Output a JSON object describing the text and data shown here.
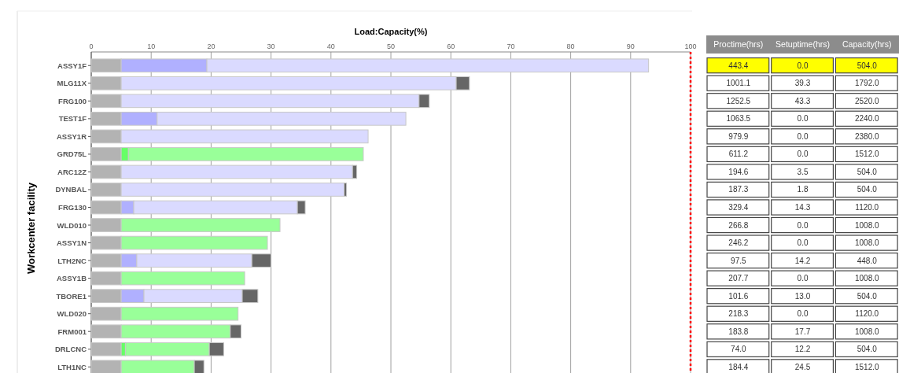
{
  "chart_data": [
    {
      "type": "bar",
      "orientation": "horizontal",
      "stacked": true,
      "title": "Load:Capacity(%)",
      "ylabel": "Workcenter facility",
      "categories": [
        "ASSY1F",
        "MLG11X",
        "FRG100",
        "TEST1F",
        "ASSY1R",
        "GRD75L",
        "ARC12Z",
        "DYNBAL",
        "FRG130",
        "WLD010",
        "ASSY1N",
        "LTH2NC",
        "ASSY1B",
        "TBORE1",
        "WLD020",
        "FRM001",
        "DRLCNC",
        "LTH1NC"
      ],
      "series": [
        {
          "color": "#b3b3b3",
          "values": [
            5,
            5,
            5,
            5,
            5,
            5,
            5,
            5,
            5,
            5,
            5,
            5,
            5,
            5,
            5,
            5,
            5,
            5
          ]
        },
        {
          "colors": [
            "#b0b0ff",
            "#b0b0ff",
            "#b0b0ff",
            "#b0b0ff",
            "#b0b0ff",
            "#66ff66",
            "#b0b0ff",
            "#b0b0ff",
            "#b0b0ff",
            "#66ff66",
            "#66ff66",
            "#b0b0ff",
            "#66ff66",
            "#b0b0ff",
            "#66ff66",
            "#66ff66",
            "#66ff66",
            "#66ff66"
          ],
          "values": [
            14.3,
            0,
            0,
            6.0,
            0,
            1.2,
            0,
            0,
            2.1,
            0,
            0,
            2.6,
            0,
            3.8,
            0,
            0,
            0.7,
            0
          ]
        },
        {
          "colors": [
            "#dadaff",
            "#dadaff",
            "#dadaff",
            "#dadaff",
            "#dadaff",
            "#99ff99",
            "#dadaff",
            "#dadaff",
            "#dadaff",
            "#99ff99",
            "#99ff99",
            "#dadaff",
            "#99ff99",
            "#dadaff",
            "#99ff99",
            "#99ff99",
            "#99ff99",
            "#99ff99"
          ],
          "values": [
            73.7,
            55.9,
            49.7,
            41.5,
            41.2,
            39.2,
            38.6,
            37.2,
            27.3,
            26.5,
            24.4,
            19.2,
            20.6,
            16.4,
            19.5,
            18.2,
            14.0,
            12.2
          ]
        },
        {
          "color": "#666666",
          "values": [
            0,
            2.2,
            1.7,
            0,
            0,
            0,
            0.7,
            0.4,
            1.3,
            0,
            0,
            3.2,
            0,
            2.6,
            0,
            1.8,
            2.4,
            1.6
          ]
        }
      ],
      "xlim": [
        0,
        100
      ],
      "xticks": [
        0,
        10,
        20,
        30,
        40,
        50,
        60,
        70,
        80,
        90,
        100
      ],
      "grid": "x",
      "ref_lines": [
        {
          "axis": "x",
          "value": 100,
          "color": "#ff0000",
          "line_style": "dotted"
        }
      ]
    },
    {
      "type": "other",
      "categories": [
        "Proctime(hrs)",
        "Setuptime(hrs)",
        "Capacity(hrs)"
      ],
      "colors": [
        [
          "#ffff00",
          "#ffff00",
          "#ffff00"
        ],
        [
          "#ffffff",
          "#ffffff",
          "#ffffff"
        ],
        [
          "#ffffff",
          "#ffffff",
          "#ffffff"
        ],
        [
          "#ffffff",
          "#ffffff",
          "#ffffff"
        ],
        [
          "#ffffff",
          "#ffffff",
          "#ffffff"
        ],
        [
          "#ffffff",
          "#ffffff",
          "#ffffff"
        ],
        [
          "#ffffff",
          "#ffffff",
          "#ffffff"
        ],
        [
          "#ffffff",
          "#ffffff",
          "#ffffff"
        ],
        [
          "#ffffff",
          "#ffffff",
          "#ffffff"
        ],
        [
          "#ffffff",
          "#ffffff",
          "#ffffff"
        ],
        [
          "#ffffff",
          "#ffffff",
          "#ffffff"
        ],
        [
          "#ffffff",
          "#ffffff",
          "#ffffff"
        ],
        [
          "#ffffff",
          "#ffffff",
          "#ffffff"
        ],
        [
          "#ffffff",
          "#ffffff",
          "#ffffff"
        ],
        [
          "#ffffff",
          "#ffffff",
          "#ffffff"
        ],
        [
          "#ffffff",
          "#ffffff",
          "#ffffff"
        ],
        [
          "#ffffff",
          "#ffffff",
          "#ffffff"
        ],
        [
          "#ffffff",
          "#ffffff",
          "#ffffff"
        ]
      ],
      "cell_labels": [
        [
          "443.4",
          "0.0",
          "504.0"
        ],
        [
          "1001.1",
          "39.3",
          "1792.0"
        ],
        [
          "1252.5",
          "43.3",
          "2520.0"
        ],
        [
          "1063.5",
          "0.0",
          "2240.0"
        ],
        [
          "979.9",
          "0.0",
          "2380.0"
        ],
        [
          "611.2",
          "0.0",
          "1512.0"
        ],
        [
          "194.6",
          "3.5",
          "504.0"
        ],
        [
          "187.3",
          "1.8",
          "504.0"
        ],
        [
          "329.4",
          "14.3",
          "1120.0"
        ],
        [
          "266.8",
          "0.0",
          "1008.0"
        ],
        [
          "246.2",
          "0.0",
          "1008.0"
        ],
        [
          "97.5",
          "14.2",
          "448.0"
        ],
        [
          "207.7",
          "0.0",
          "1008.0"
        ],
        [
          "101.6",
          "13.0",
          "504.0"
        ],
        [
          "218.3",
          "0.0",
          "1120.0"
        ],
        [
          "183.8",
          "17.7",
          "1008.0"
        ],
        [
          "74.0",
          "12.2",
          "504.0"
        ],
        [
          "184.4",
          "24.5",
          "1512.0"
        ]
      ]
    }
  ]
}
